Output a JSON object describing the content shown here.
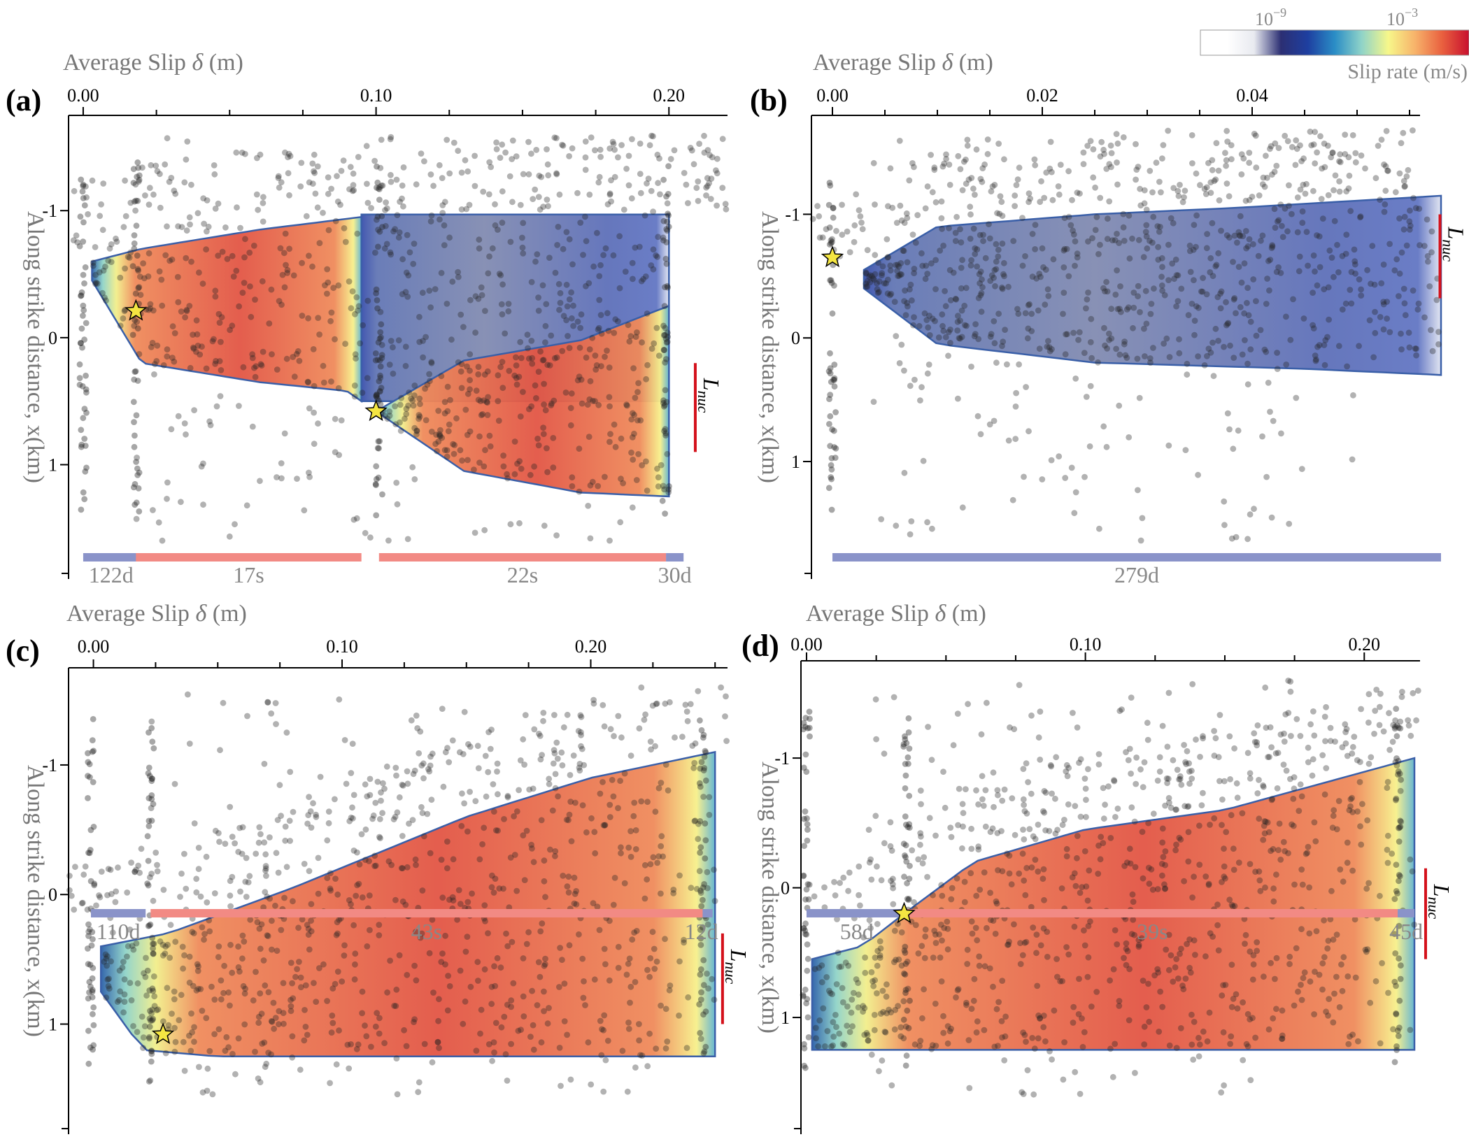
{
  "colorbar": {
    "tick_low": "10",
    "tick_low_exp": "−9",
    "tick_high": "10",
    "tick_high_exp": "−3",
    "label": "Slip rate (m/s)",
    "colors": [
      "#ffffff",
      "#ffffff",
      "#e8eaf0",
      "#2c2f73",
      "#1e3fa0",
      "#2a8dc6",
      "#8fd3c8",
      "#f7f78a",
      "#f7b26a",
      "#e9603f",
      "#c8102e"
    ]
  },
  "labels": {
    "x_axis": "Average Slip",
    "x_symbol": "δ",
    "x_unit": "(m)",
    "y_axis": "Along strike distance, x(km)",
    "lnuc_main": "L",
    "lnuc_sub": "nuc"
  },
  "chart_data": [
    {
      "panel": "(a)",
      "type": "scatter",
      "xlim": [
        -0.005,
        0.22
      ],
      "ylim": [
        1.9,
        -1.75
      ],
      "x_ticks": [
        0.0,
        0.1,
        0.2
      ],
      "x_tick_labels": [
        "0.00",
        "0.10",
        "0.20"
      ],
      "y_ticks": [
        -1,
        0,
        1
      ],
      "y_tick_labels": [
        "-1",
        "0",
        "1"
      ],
      "hypocenters": [
        {
          "x": 0.018,
          "y": -0.21
        },
        {
          "x": 0.1,
          "y": 0.58
        }
      ],
      "lnuc": {
        "x": 0.209,
        "y_range": [
          0.2,
          0.9
        ]
      },
      "phases": [
        {
          "kind": "interseismic",
          "x_range": [
            0.0,
            0.019
          ],
          "label": "122d"
        },
        {
          "kind": "coseismic",
          "x_range": [
            0.018,
            0.095
          ],
          "label": "17s"
        },
        {
          "kind": "coseismic",
          "x_range": [
            0.101,
            0.199
          ],
          "label": "22s"
        },
        {
          "kind": "interseismic",
          "x_range": [
            0.199,
            0.205
          ],
          "label": "30d"
        }
      ],
      "ruptures": [
        {
          "type": "bright",
          "x_range": [
            0.003,
            0.095
          ],
          "top": [
            [
              0.003,
              -0.6
            ],
            [
              0.02,
              -0.7
            ],
            [
              0.06,
              -0.85
            ],
            [
              0.095,
              -0.95
            ]
          ],
          "bottom": [
            [
              0.003,
              -0.45
            ],
            [
              0.02,
              0.2
            ],
            [
              0.06,
              0.35
            ],
            [
              0.09,
              0.42
            ],
            [
              0.095,
              0.5
            ]
          ]
        },
        {
          "type": "dim",
          "x_range": [
            0.095,
            0.2
          ],
          "top": [
            [
              0.095,
              -0.97
            ],
            [
              0.2,
              -0.97
            ]
          ],
          "bottom": [
            [
              0.095,
              0.5
            ],
            [
              0.2,
              0.5
            ]
          ]
        },
        {
          "type": "bright",
          "x_range": [
            0.1,
            0.2
          ],
          "top": [
            [
              0.1,
              0.58
            ],
            [
              0.13,
              0.18
            ],
            [
              0.17,
              0.02
            ],
            [
              0.2,
              -0.25
            ]
          ],
          "bottom": [
            [
              0.1,
              0.58
            ],
            [
              0.13,
              1.05
            ],
            [
              0.17,
              1.22
            ],
            [
              0.2,
              1.25
            ]
          ]
        }
      ]
    },
    {
      "panel": "(b)",
      "type": "scatter",
      "xlim": [
        -0.002,
        0.056
      ],
      "ylim": [
        1.95,
        -1.8
      ],
      "x_ticks": [
        0.0,
        0.02,
        0.04
      ],
      "x_tick_labels": [
        "0.00",
        "0.02",
        "0.04"
      ],
      "y_ticks": [
        -1,
        0,
        1
      ],
      "y_tick_labels": [
        "-1",
        "0",
        "1"
      ],
      "hypocenters": [
        {
          "x": 0.0,
          "y": -0.65
        }
      ],
      "lnuc": {
        "x": 0.0579,
        "y_range": [
          -1.0,
          -0.32
        ]
      },
      "phases": [
        {
          "kind": "interseismic",
          "x_range": [
            0.0,
            0.058
          ],
          "label": "279d"
        }
      ],
      "ruptures": [
        {
          "type": "dim",
          "x_range": [
            0.003,
            0.058
          ],
          "top": [
            [
              0.003,
              -0.55
            ],
            [
              0.01,
              -0.9
            ],
            [
              0.025,
              -1.0
            ],
            [
              0.038,
              -1.05
            ],
            [
              0.058,
              -1.15
            ]
          ],
          "bottom": [
            [
              0.003,
              -0.4
            ],
            [
              0.01,
              0.05
            ],
            [
              0.025,
              0.2
            ],
            [
              0.045,
              0.25
            ],
            [
              0.058,
              0.3
            ]
          ]
        }
      ]
    },
    {
      "panel": "(c)",
      "type": "scatter",
      "xlim": [
        -0.01,
        0.255
      ],
      "ylim": [
        1.85,
        -1.75
      ],
      "x_ticks": [
        0.0,
        0.1,
        0.2
      ],
      "x_tick_labels": [
        "0.00",
        "0.10",
        "0.20"
      ],
      "y_ticks": [
        -1,
        0,
        1
      ],
      "y_tick_labels": [
        "-1",
        "0",
        "1"
      ],
      "hypocenters": [
        {
          "x": 0.028,
          "y": 1.08
        }
      ],
      "lnuc": {
        "x": 0.253,
        "y_range": [
          0.3,
          1.0
        ]
      },
      "phases": [
        {
          "kind": "interseismic",
          "x_range": [
            -0.001,
            0.021
          ],
          "label": "110d"
        },
        {
          "kind": "coseismic",
          "x_range": [
            0.023,
            0.245
          ],
          "label": "43s"
        },
        {
          "kind": "interseismic",
          "x_range": [
            0.245,
            0.249
          ],
          "label": "12d"
        }
      ],
      "ruptures": [
        {
          "type": "bright",
          "x_range": [
            0.003,
            0.25
          ],
          "top": [
            [
              0.003,
              0.4
            ],
            [
              0.03,
              0.3
            ],
            [
              0.08,
              -0.05
            ],
            [
              0.15,
              -0.6
            ],
            [
              0.2,
              -0.9
            ],
            [
              0.25,
              -1.1
            ]
          ],
          "bottom": [
            [
              0.003,
              0.75
            ],
            [
              0.02,
              1.2
            ],
            [
              0.05,
              1.25
            ],
            [
              0.25,
              1.25
            ]
          ]
        }
      ]
    },
    {
      "panel": "(d)",
      "type": "scatter",
      "xlim": [
        -0.002,
        0.22
      ],
      "ylim": [
        1.9,
        -1.75
      ],
      "x_ticks": [
        0.0,
        0.1,
        0.2
      ],
      "x_tick_labels": [
        "0.00",
        "0.10",
        "0.20"
      ],
      "y_ticks": [
        -1,
        0,
        1
      ],
      "y_tick_labels": [
        "-1",
        "0",
        "1"
      ],
      "hypocenters": [
        {
          "x": 0.035,
          "y": 0.2
        }
      ],
      "lnuc": {
        "x": 0.222,
        "y_range": [
          -0.15,
          0.55
        ]
      },
      "phases": [
        {
          "kind": "interseismic",
          "x_range": [
            0.0,
            0.036
          ],
          "label": "58d"
        },
        {
          "kind": "coseismic",
          "x_range": [
            0.036,
            0.212
          ],
          "label": "39s"
        },
        {
          "kind": "interseismic",
          "x_range": [
            0.212,
            0.218
          ],
          "label": "45d"
        }
      ],
      "ruptures": [
        {
          "type": "bright",
          "x_range": [
            0.002,
            0.218
          ],
          "top": [
            [
              0.002,
              0.55
            ],
            [
              0.02,
              0.45
            ],
            [
              0.035,
              0.2
            ],
            [
              0.06,
              -0.2
            ],
            [
              0.1,
              -0.45
            ],
            [
              0.15,
              -0.6
            ],
            [
              0.218,
              -1.0
            ]
          ],
          "bottom": [
            [
              0.002,
              1.25
            ],
            [
              0.218,
              1.25
            ]
          ]
        }
      ]
    }
  ]
}
